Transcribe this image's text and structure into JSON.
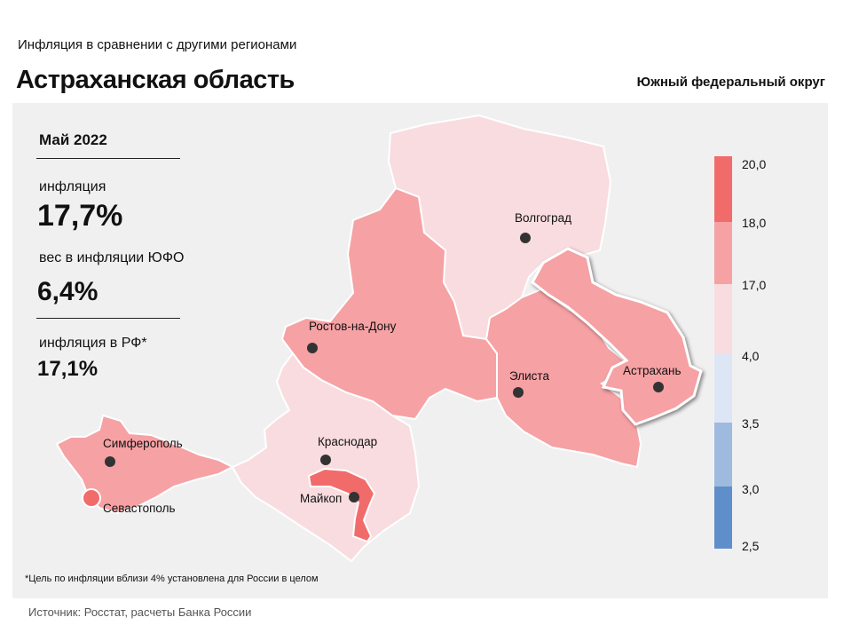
{
  "header": {
    "subtitle": "Инфляция  в сравнении  с другими  регионами",
    "title": "Астраханская область",
    "district": "Южный федеральный округ"
  },
  "info": {
    "period": "Май 2022",
    "inflation_label": "инфляция",
    "inflation_value": "17,7%",
    "weight_label": "вес в инфляции  ЮФО",
    "weight_value": "6,4%",
    "rf_label": "инфляция  в РФ*",
    "rf_value": "17,1%"
  },
  "footnote": "*Цель по инфляции вблизи 4% установлена для России в целом",
  "source": "Источник: Росстат, расчеты Банка России",
  "map": {
    "highlighted_region": "Астрахань",
    "colors": {
      "background": "#f1f0f0",
      "bin_18_20": "#f26b6b",
      "bin_17_18": "#f6a1a4",
      "bin_4_17": "#f9dcdf",
      "bin_35_4": "#dde6f4",
      "bin_3_35": "#9fbadf",
      "bin_25_3": "#5f8fcb"
    },
    "regions": [
      {
        "name": "Волгоград",
        "bin": "4,0–17,0"
      },
      {
        "name": "Ростов-на-Дону",
        "bin": "17,0–18,0"
      },
      {
        "name": "Элиста",
        "bin": "17,0–18,0"
      },
      {
        "name": "Астрахань",
        "bin": "17,0–18,0"
      },
      {
        "name": "Краснодар",
        "bin": "4,0–17,0"
      },
      {
        "name": "Майкоп",
        "bin": "18,0–20,0"
      },
      {
        "name": "Симферополь",
        "bin": "17,0–18,0"
      },
      {
        "name": "Севастополь",
        "bin": "18,0–20,0"
      }
    ],
    "cities": {
      "volgograd": "Волгоград",
      "rostov": "Ростов-на-Дону",
      "elista": "Элиста",
      "astrakhan": "Астрахань",
      "krasnodar": "Краснодар",
      "maykop": "Майкоп",
      "simferopol": "Симферополь",
      "sevastopol": "Севастополь"
    }
  },
  "legend": {
    "ticks": [
      "20,0",
      "18,0",
      "17,0",
      "4,0",
      "3,5",
      "3,0",
      "2,5"
    ]
  }
}
